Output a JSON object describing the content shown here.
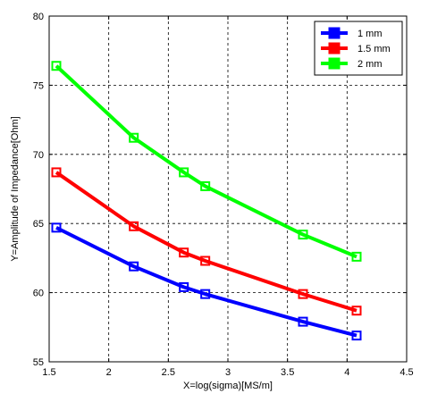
{
  "chart_data": {
    "type": "line",
    "title": "",
    "xlabel": "X=log(sigma)[MS/m]",
    "ylabel": "Y=Amplitude of Impedance[Ohm]",
    "xlim": [
      1.5,
      4.5
    ],
    "ylim": [
      55,
      80
    ],
    "xticks": [
      1.5,
      2,
      2.5,
      3,
      3.5,
      4,
      4.5
    ],
    "xtick_labels": [
      "1.5",
      "2",
      "2.5",
      "3",
      "3.5",
      "4",
      "4.5"
    ],
    "yticks": [
      55,
      60,
      65,
      70,
      75,
      80
    ],
    "ytick_labels": [
      "55",
      "60",
      "65",
      "70",
      "75",
      "80"
    ],
    "grid": true,
    "legend_position": "top-right",
    "x": [
      1.56,
      2.21,
      2.63,
      2.81,
      3.63,
      4.08
    ],
    "series": [
      {
        "name": "1 mm",
        "color": "#0000ff",
        "values": [
          64.7,
          61.9,
          60.4,
          59.9,
          57.9,
          56.9
        ]
      },
      {
        "name": "1.5 mm",
        "color": "#ff0000",
        "values": [
          68.7,
          64.8,
          62.9,
          62.3,
          59.9,
          58.7
        ]
      },
      {
        "name": "2 mm",
        "color": "#00ff00",
        "values": [
          76.4,
          71.2,
          68.7,
          67.7,
          64.2,
          62.6
        ]
      }
    ]
  }
}
